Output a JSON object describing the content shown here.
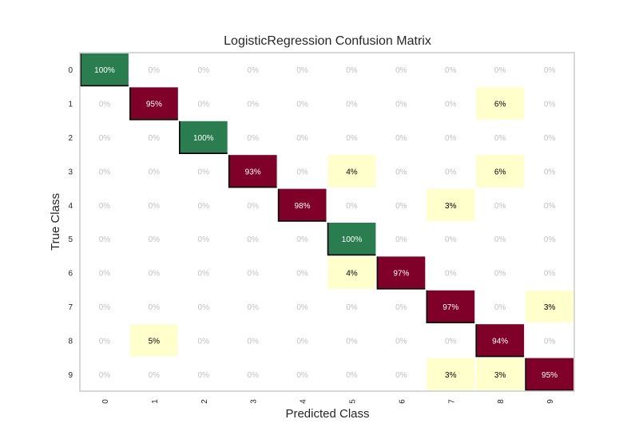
{
  "chart_data": {
    "type": "heatmap",
    "title": "LogisticRegression Confusion Matrix",
    "xlabel": "Predicted Class",
    "ylabel": "True Class",
    "x_categories": [
      "0",
      "1",
      "2",
      "3",
      "4",
      "5",
      "6",
      "7",
      "8",
      "9"
    ],
    "y_categories": [
      "0",
      "1",
      "2",
      "3",
      "4",
      "5",
      "6",
      "7",
      "8",
      "9"
    ],
    "unit": "%",
    "values": [
      [
        100,
        0,
        0,
        0,
        0,
        0,
        0,
        0,
        0,
        0
      ],
      [
        0,
        95,
        0,
        0,
        0,
        0,
        0,
        0,
        6,
        0
      ],
      [
        0,
        0,
        100,
        0,
        0,
        0,
        0,
        0,
        0,
        0
      ],
      [
        0,
        0,
        0,
        93,
        0,
        4,
        0,
        0,
        6,
        0
      ],
      [
        0,
        0,
        0,
        0,
        98,
        0,
        0,
        3,
        0,
        0
      ],
      [
        0,
        0,
        0,
        0,
        0,
        100,
        0,
        0,
        0,
        0
      ],
      [
        0,
        0,
        0,
        0,
        0,
        4,
        97,
        0,
        0,
        0
      ],
      [
        0,
        0,
        0,
        0,
        0,
        0,
        0,
        97,
        0,
        3
      ],
      [
        0,
        5,
        0,
        0,
        0,
        0,
        0,
        0,
        94,
        0
      ],
      [
        0,
        0,
        0,
        0,
        0,
        0,
        0,
        3,
        3,
        95
      ]
    ],
    "colors": {
      "perfect": "#2a7d4f",
      "high": "#7f0028",
      "low": "#ffffcc",
      "zero": "#ffffff",
      "zero_text": "#c0c0c0",
      "frame": "#cccccc"
    }
  }
}
